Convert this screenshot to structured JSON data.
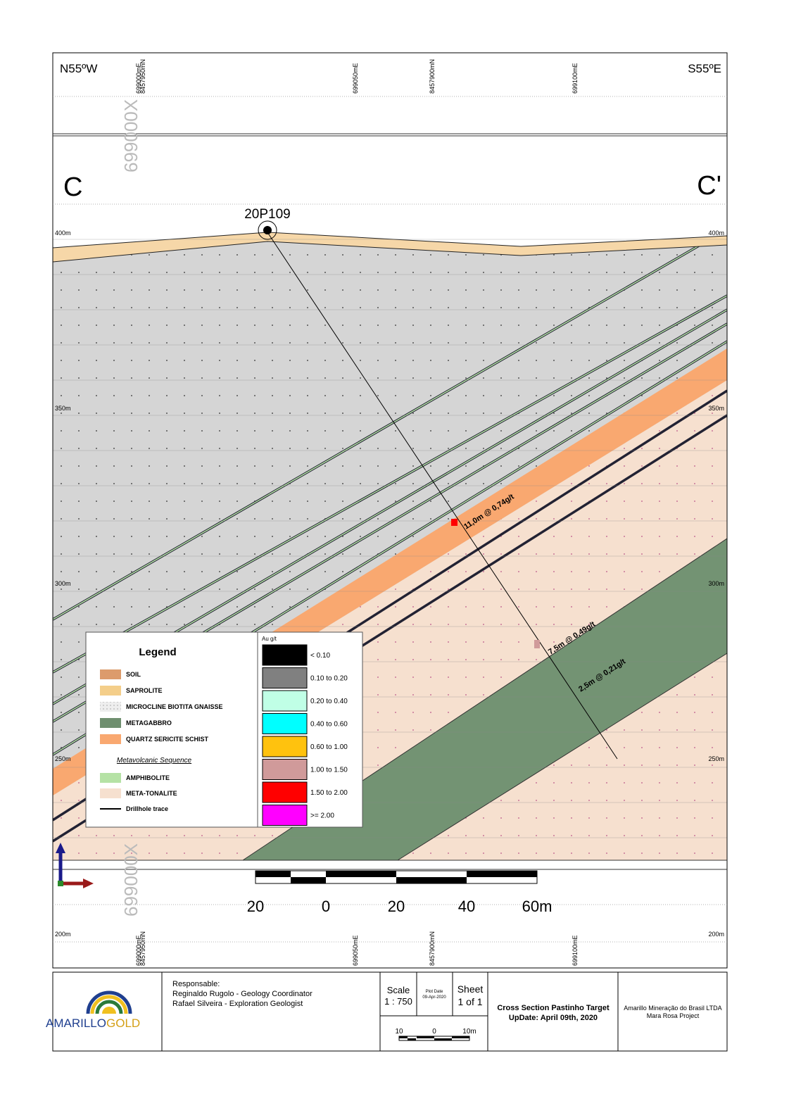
{
  "header": {
    "left_direction": "N55ºW",
    "right_direction": "S55ºE",
    "section_start": "C",
    "section_end": "C'",
    "watermark": "699000X"
  },
  "grid_labels": [
    "699000mE",
    "8457950mN",
    "699050mE",
    "8457900mN",
    "699100mE"
  ],
  "elevations": [
    "400m",
    "350m",
    "300m",
    "250m",
    "200m"
  ],
  "drillhole": {
    "id": "20P109",
    "intercepts": [
      "11,0m @ 0,74g/t",
      "7,5m @ 0,49g/t",
      "2,5m @ 0,21g/t"
    ]
  },
  "legend": {
    "title": "Legend",
    "lithology": [
      {
        "label": "SOIL",
        "color": "#dc9b6c"
      },
      {
        "label": "SAPROLITE",
        "color": "#f4ce8a"
      },
      {
        "label": "MICROCLINE BIOTITA GNAISSE",
        "color": "#e4e4e4"
      },
      {
        "label": "METAGABBRO",
        "color": "#6f8f6f"
      },
      {
        "label": "QUARTZ SERICITE SCHIST",
        "color": "#f9a870"
      }
    ],
    "subheading": "Metavolcanic Sequence",
    "volcanic": [
      {
        "label": "AMPHIBOLITE",
        "color": "#b5e2a5"
      },
      {
        "label": "META-TONALITE",
        "color": "#f6e0cf"
      },
      {
        "label": "Drillhole trace",
        "color": "#000000"
      }
    ]
  },
  "grade_legend": {
    "title": "Au g/t",
    "classes": [
      {
        "label": "< 0.10",
        "color": "#000000"
      },
      {
        "label": "0.10 to 0.20",
        "color": "#808080"
      },
      {
        "label": "0.20 to 0.40",
        "color": "#c0ffe6"
      },
      {
        "label": "0.40 to 0.60",
        "color": "#00ffff"
      },
      {
        "label": "0.60 to 1.00",
        "color": "#ffc20e"
      },
      {
        "label": "1.00 to 1.50",
        "color": "#d09a9a"
      },
      {
        "label": "1.50 to 2.00",
        "color": "#ff0000"
      },
      {
        "label": ">= 2.00",
        "color": "#ff00ff"
      }
    ]
  },
  "scale_bar": [
    "20",
    "0",
    "20",
    "40",
    "60m"
  ],
  "title_block": {
    "company_name": "AMARILLO",
    "company_name_2": "GOLD",
    "responsable": "Responsable:",
    "person_1": "Reginaldo Rugolo - Geology Coordinator",
    "person_2": "Rafael Silveira - Exploration Geologist",
    "scale_label": "Scale",
    "scale": "1 : 750",
    "plot_date_label": "Plot Date",
    "plot_date": "09-Apr-2020",
    "sheet_label": "Sheet",
    "sheet": "1 of 1",
    "mini_scale": [
      "10",
      "0",
      "10m"
    ],
    "title": "Cross Section Pastinho Target",
    "update": "UpDate: April 09th, 2020",
    "company": "Amarillo Mineração do Brasil LTDA",
    "project": "Mara Rosa Project"
  }
}
